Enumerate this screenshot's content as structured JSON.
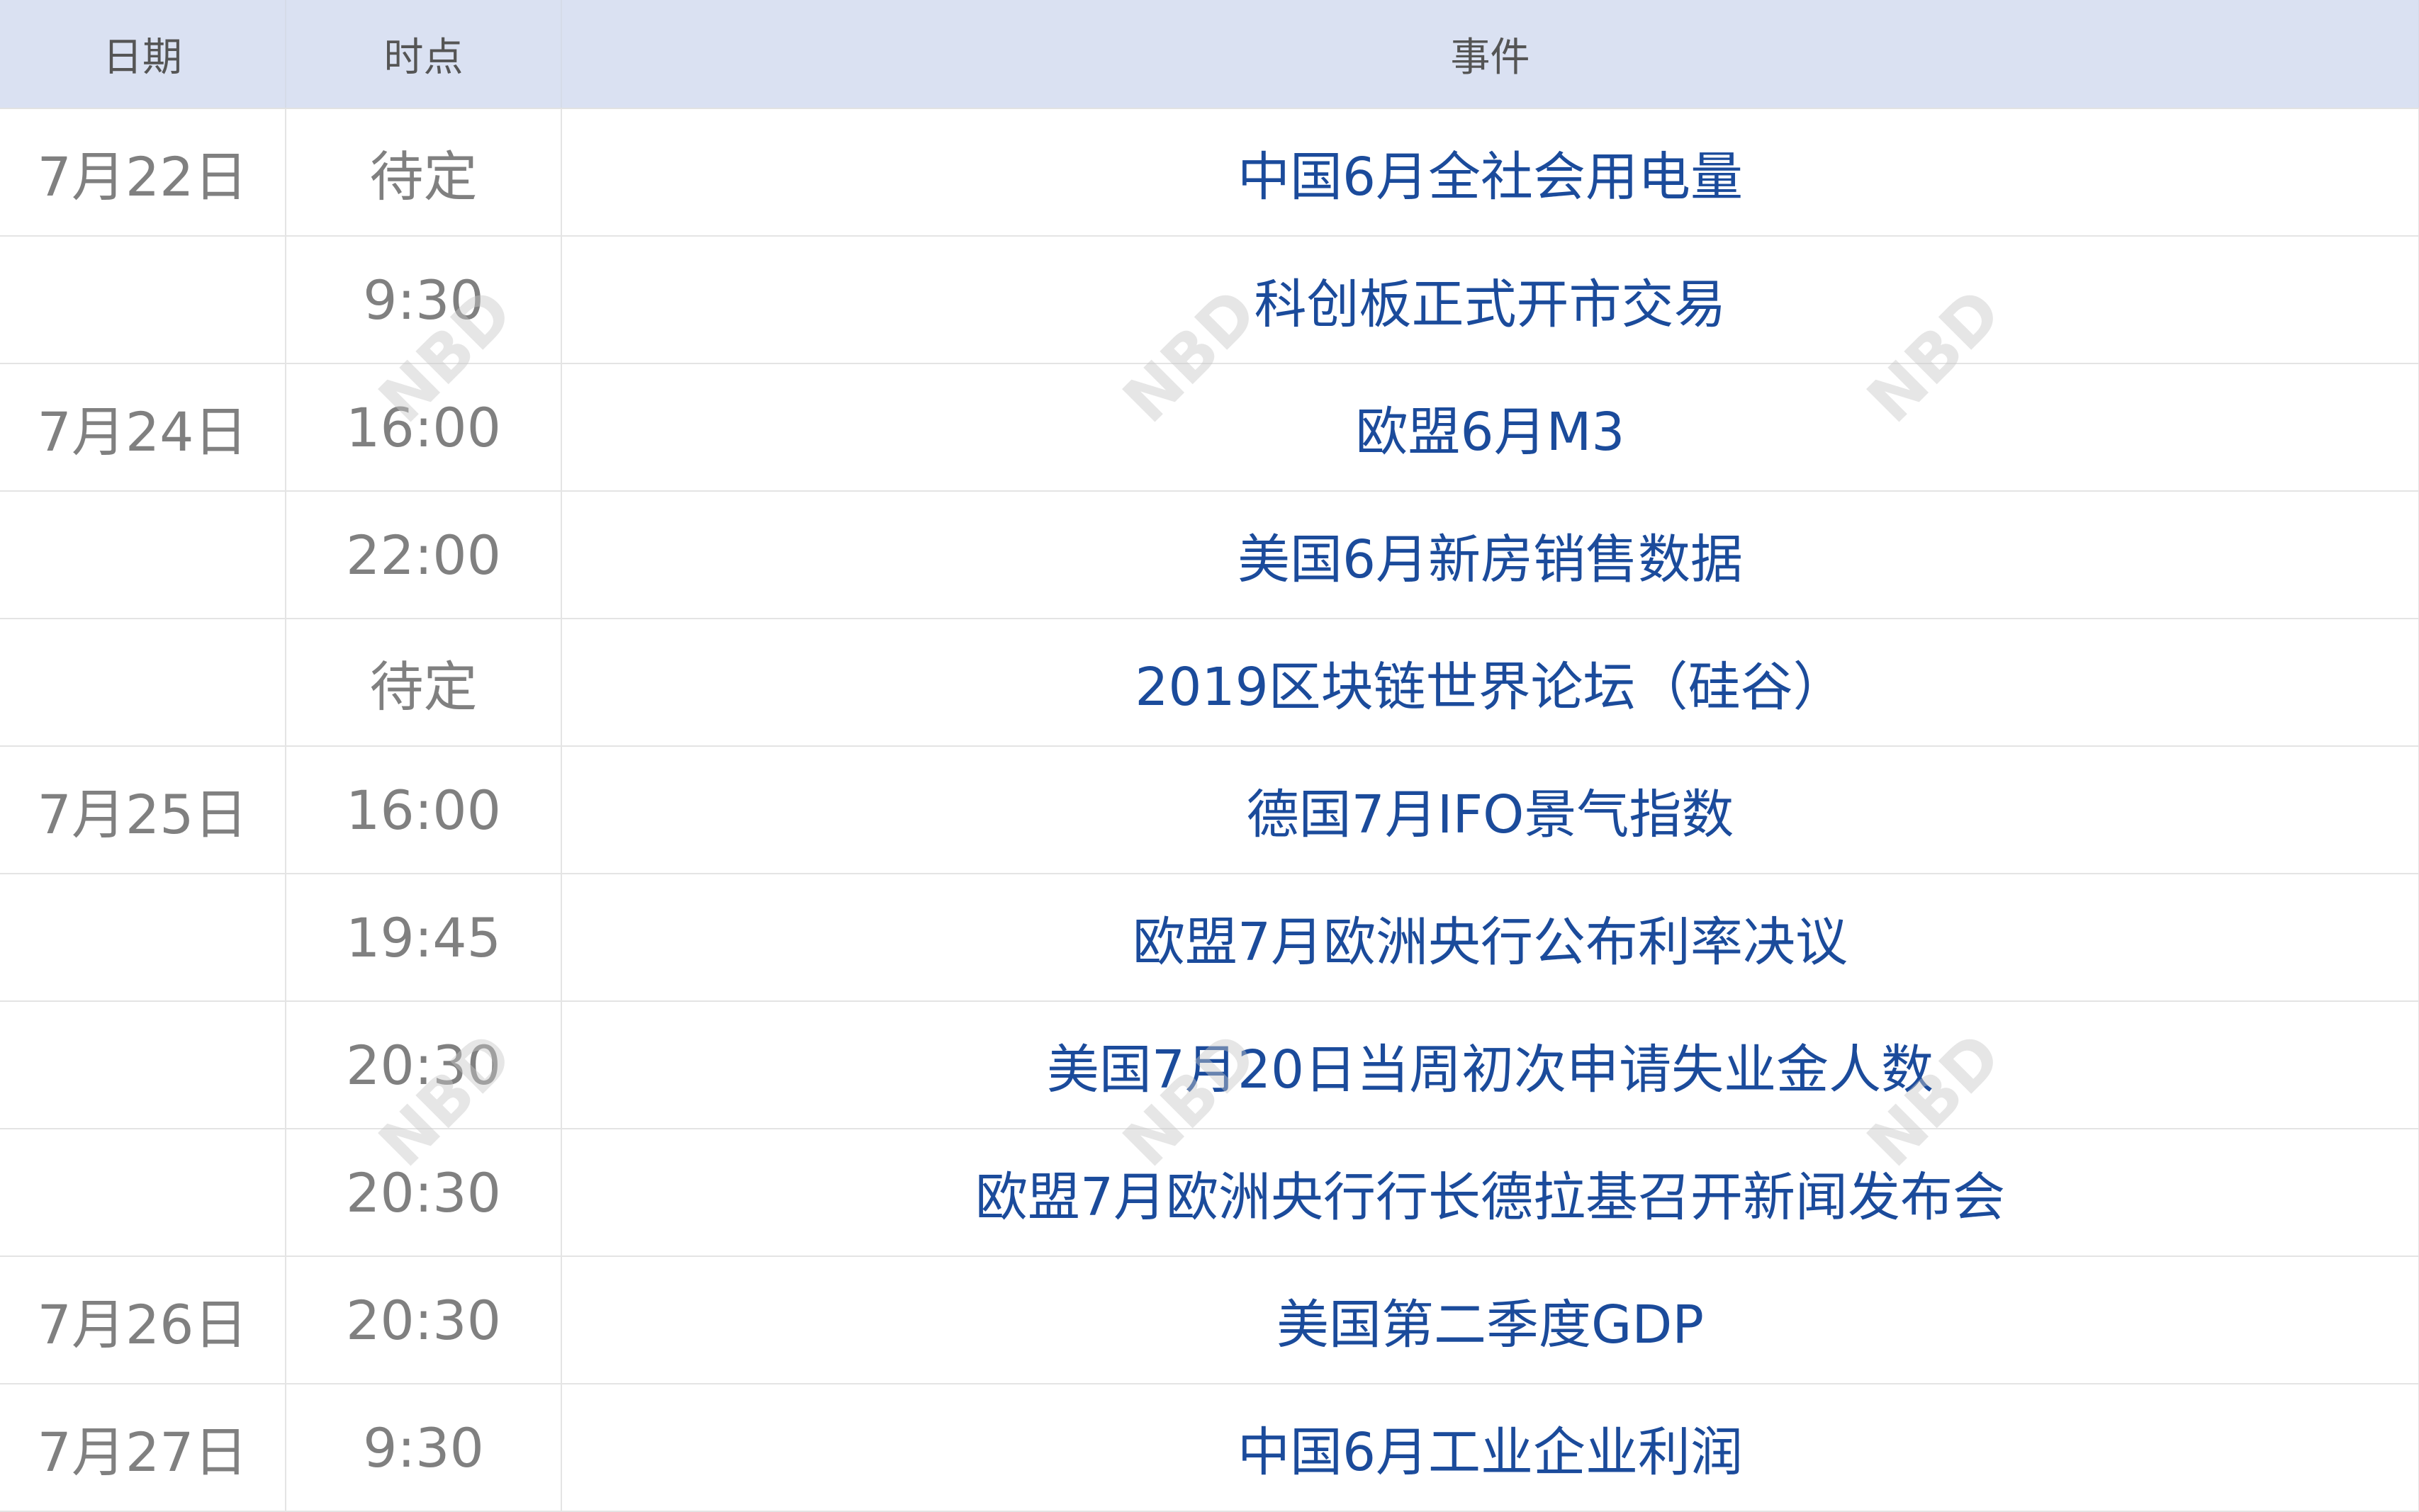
{
  "header": {
    "date": "日期",
    "time": "时点",
    "event": "事件"
  },
  "rows": [
    {
      "date": "7月22日",
      "time": "待定",
      "event": "中国6月全社会用电量"
    },
    {
      "date": "",
      "time": "9:30",
      "event": "科创板正式开市交易"
    },
    {
      "date": "7月24日",
      "time": "16:00",
      "event": "欧盟6月M3"
    },
    {
      "date": "",
      "time": "22:00",
      "event": "美国6月新房销售数据"
    },
    {
      "date": "",
      "time": "待定",
      "event": "2019区块链世界论坛（硅谷）"
    },
    {
      "date": "7月25日",
      "time": "16:00",
      "event": "德国7月IFO景气指数"
    },
    {
      "date": "",
      "time": "19:45",
      "event": "欧盟7月欧洲央行公布利率决议"
    },
    {
      "date": "",
      "time": "20:30",
      "event": "美国7月20日当周初次申请失业金人数"
    },
    {
      "date": "",
      "time": "20:30",
      "event": "欧盟7月欧洲央行行长德拉基召开新闻发布会"
    },
    {
      "date": "7月26日",
      "time": "20:30",
      "event": "美国第二季度GDP"
    },
    {
      "date": "7月27日",
      "time": "9:30",
      "event": "中国6月工业企业利润"
    }
  ],
  "watermark": "NBD",
  "colors": {
    "header_bg": "#dae1f2",
    "event_text": "#1b4b9b",
    "date_text": "#808080"
  }
}
